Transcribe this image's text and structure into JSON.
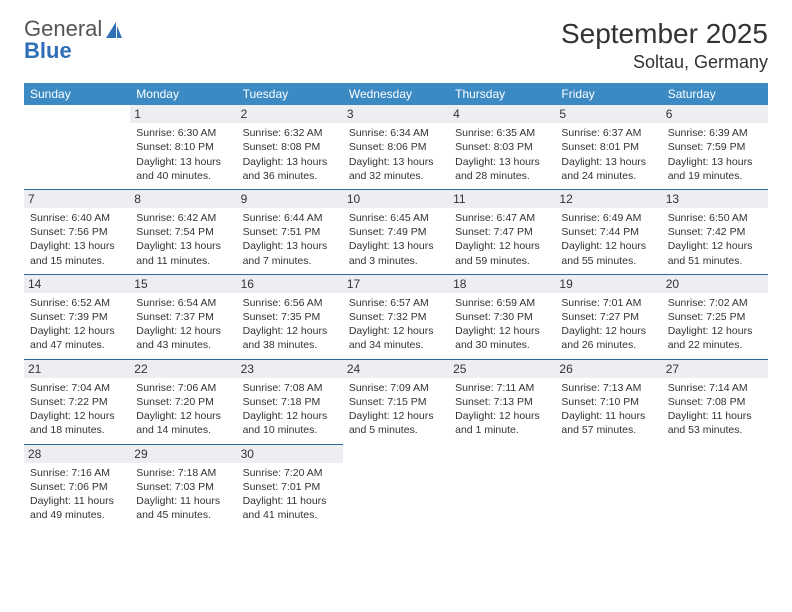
{
  "logo": {
    "text1": "General",
    "text2": "Blue"
  },
  "title": "September 2025",
  "location": "Soltau, Germany",
  "colors": {
    "header_bg": "#3b8ac4",
    "header_text": "#ffffff",
    "daynum_bg": "#eceef1",
    "row_divider": "#2f6a9e",
    "body_text": "#333333",
    "logo_gray": "#555555",
    "logo_blue": "#2e6fb5",
    "page_bg": "#ffffff"
  },
  "day_headers": [
    "Sunday",
    "Monday",
    "Tuesday",
    "Wednesday",
    "Thursday",
    "Friday",
    "Saturday"
  ],
  "weeks": [
    [
      {
        "n": "",
        "lines": []
      },
      {
        "n": "1",
        "lines": [
          "Sunrise: 6:30 AM",
          "Sunset: 8:10 PM",
          "Daylight: 13 hours and 40 minutes."
        ]
      },
      {
        "n": "2",
        "lines": [
          "Sunrise: 6:32 AM",
          "Sunset: 8:08 PM",
          "Daylight: 13 hours and 36 minutes."
        ]
      },
      {
        "n": "3",
        "lines": [
          "Sunrise: 6:34 AM",
          "Sunset: 8:06 PM",
          "Daylight: 13 hours and 32 minutes."
        ]
      },
      {
        "n": "4",
        "lines": [
          "Sunrise: 6:35 AM",
          "Sunset: 8:03 PM",
          "Daylight: 13 hours and 28 minutes."
        ]
      },
      {
        "n": "5",
        "lines": [
          "Sunrise: 6:37 AM",
          "Sunset: 8:01 PM",
          "Daylight: 13 hours and 24 minutes."
        ]
      },
      {
        "n": "6",
        "lines": [
          "Sunrise: 6:39 AM",
          "Sunset: 7:59 PM",
          "Daylight: 13 hours and 19 minutes."
        ]
      }
    ],
    [
      {
        "n": "7",
        "lines": [
          "Sunrise: 6:40 AM",
          "Sunset: 7:56 PM",
          "Daylight: 13 hours and 15 minutes."
        ]
      },
      {
        "n": "8",
        "lines": [
          "Sunrise: 6:42 AM",
          "Sunset: 7:54 PM",
          "Daylight: 13 hours and 11 minutes."
        ]
      },
      {
        "n": "9",
        "lines": [
          "Sunrise: 6:44 AM",
          "Sunset: 7:51 PM",
          "Daylight: 13 hours and 7 minutes."
        ]
      },
      {
        "n": "10",
        "lines": [
          "Sunrise: 6:45 AM",
          "Sunset: 7:49 PM",
          "Daylight: 13 hours and 3 minutes."
        ]
      },
      {
        "n": "11",
        "lines": [
          "Sunrise: 6:47 AM",
          "Sunset: 7:47 PM",
          "Daylight: 12 hours and 59 minutes."
        ]
      },
      {
        "n": "12",
        "lines": [
          "Sunrise: 6:49 AM",
          "Sunset: 7:44 PM",
          "Daylight: 12 hours and 55 minutes."
        ]
      },
      {
        "n": "13",
        "lines": [
          "Sunrise: 6:50 AM",
          "Sunset: 7:42 PM",
          "Daylight: 12 hours and 51 minutes."
        ]
      }
    ],
    [
      {
        "n": "14",
        "lines": [
          "Sunrise: 6:52 AM",
          "Sunset: 7:39 PM",
          "Daylight: 12 hours and 47 minutes."
        ]
      },
      {
        "n": "15",
        "lines": [
          "Sunrise: 6:54 AM",
          "Sunset: 7:37 PM",
          "Daylight: 12 hours and 43 minutes."
        ]
      },
      {
        "n": "16",
        "lines": [
          "Sunrise: 6:56 AM",
          "Sunset: 7:35 PM",
          "Daylight: 12 hours and 38 minutes."
        ]
      },
      {
        "n": "17",
        "lines": [
          "Sunrise: 6:57 AM",
          "Sunset: 7:32 PM",
          "Daylight: 12 hours and 34 minutes."
        ]
      },
      {
        "n": "18",
        "lines": [
          "Sunrise: 6:59 AM",
          "Sunset: 7:30 PM",
          "Daylight: 12 hours and 30 minutes."
        ]
      },
      {
        "n": "19",
        "lines": [
          "Sunrise: 7:01 AM",
          "Sunset: 7:27 PM",
          "Daylight: 12 hours and 26 minutes."
        ]
      },
      {
        "n": "20",
        "lines": [
          "Sunrise: 7:02 AM",
          "Sunset: 7:25 PM",
          "Daylight: 12 hours and 22 minutes."
        ]
      }
    ],
    [
      {
        "n": "21",
        "lines": [
          "Sunrise: 7:04 AM",
          "Sunset: 7:22 PM",
          "Daylight: 12 hours and 18 minutes."
        ]
      },
      {
        "n": "22",
        "lines": [
          "Sunrise: 7:06 AM",
          "Sunset: 7:20 PM",
          "Daylight: 12 hours and 14 minutes."
        ]
      },
      {
        "n": "23",
        "lines": [
          "Sunrise: 7:08 AM",
          "Sunset: 7:18 PM",
          "Daylight: 12 hours and 10 minutes."
        ]
      },
      {
        "n": "24",
        "lines": [
          "Sunrise: 7:09 AM",
          "Sunset: 7:15 PM",
          "Daylight: 12 hours and 5 minutes."
        ]
      },
      {
        "n": "25",
        "lines": [
          "Sunrise: 7:11 AM",
          "Sunset: 7:13 PM",
          "Daylight: 12 hours and 1 minute."
        ]
      },
      {
        "n": "26",
        "lines": [
          "Sunrise: 7:13 AM",
          "Sunset: 7:10 PM",
          "Daylight: 11 hours and 57 minutes."
        ]
      },
      {
        "n": "27",
        "lines": [
          "Sunrise: 7:14 AM",
          "Sunset: 7:08 PM",
          "Daylight: 11 hours and 53 minutes."
        ]
      }
    ],
    [
      {
        "n": "28",
        "lines": [
          "Sunrise: 7:16 AM",
          "Sunset: 7:06 PM",
          "Daylight: 11 hours and 49 minutes."
        ]
      },
      {
        "n": "29",
        "lines": [
          "Sunrise: 7:18 AM",
          "Sunset: 7:03 PM",
          "Daylight: 11 hours and 45 minutes."
        ]
      },
      {
        "n": "30",
        "lines": [
          "Sunrise: 7:20 AM",
          "Sunset: 7:01 PM",
          "Daylight: 11 hours and 41 minutes."
        ]
      },
      {
        "n": "",
        "lines": []
      },
      {
        "n": "",
        "lines": []
      },
      {
        "n": "",
        "lines": []
      },
      {
        "n": "",
        "lines": []
      }
    ]
  ]
}
